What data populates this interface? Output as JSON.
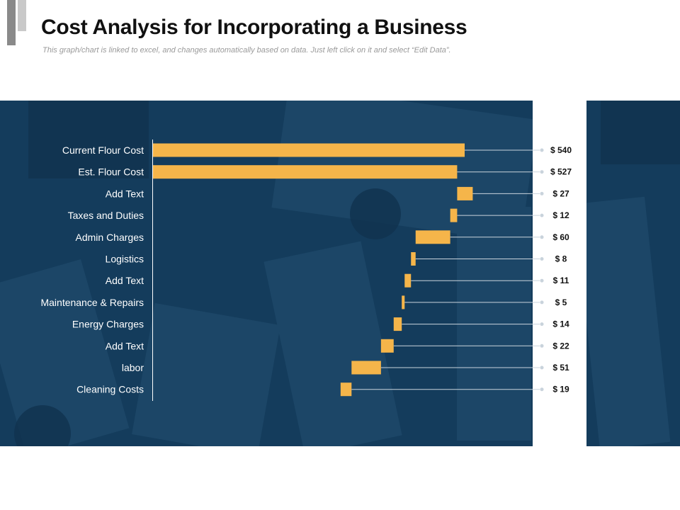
{
  "header": {
    "title": "Cost Analysis for Incorporating a Business",
    "subtitle": "This graph/chart is linked to excel, and changes automatically based on data. Just left click on it and select “Edit Data”."
  },
  "colors": {
    "panel": "#143c5c",
    "bar": "#f5b54a",
    "connector": "#c9d3dc",
    "background_image": "desk-photo-overlay"
  },
  "chart_data": {
    "type": "bar",
    "subtype": "waterfall-horizontal",
    "orientation": "horizontal",
    "title": "",
    "xlabel": "",
    "ylabel": "",
    "xlim": [
      0,
      540
    ],
    "grid": false,
    "legend": "none",
    "categories": [
      "Current Flour Cost",
      "Est. Flour Cost",
      "Add Text",
      "Taxes and Duties",
      "Admin Charges",
      "Logistics",
      "Add Text",
      "Maintenance & Repairs",
      "Energy Charges",
      "Add Text",
      "labor",
      "Cleaning Costs"
    ],
    "starts": [
      0,
      0,
      527,
      515,
      455,
      447,
      436,
      431,
      417,
      395,
      344,
      325
    ],
    "values": [
      540,
      527,
      27,
      12,
      60,
      8,
      11,
      5,
      14,
      22,
      51,
      19
    ],
    "value_labels": [
      "$ 540",
      "$ 527",
      "$ 27",
      "$ 12",
      "$ 60",
      "$ 8",
      "$ 11",
      "$ 5",
      "$ 14",
      "$ 22",
      "$ 51",
      "$ 19"
    ]
  }
}
